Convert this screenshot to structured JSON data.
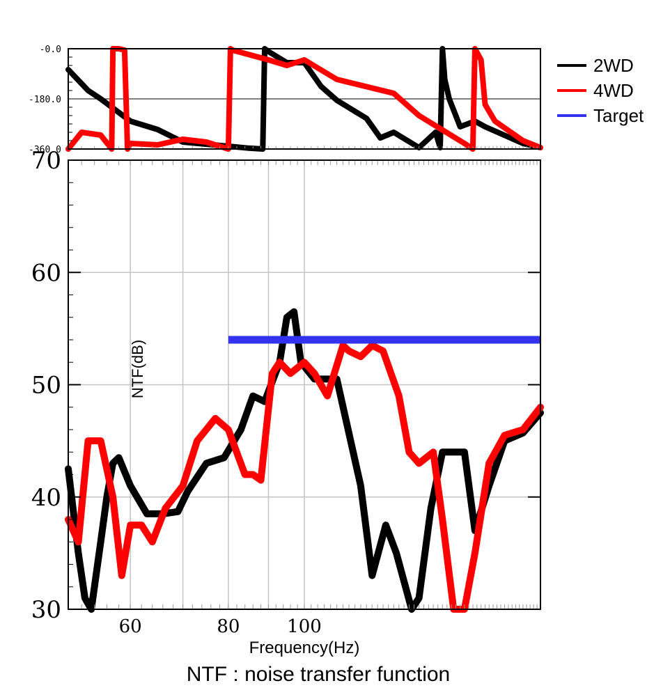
{
  "chart_data": [
    {
      "panel": "phase",
      "type": "line",
      "xscale": "log",
      "xlim": [
        50,
        200
      ],
      "ylim": [
        -360,
        0
      ],
      "yticks": [
        {
          "value": 0,
          "label": "-0.0"
        },
        {
          "value": -180,
          "label": "-180.0"
        },
        {
          "value": -360,
          "label": "-360.0"
        }
      ],
      "grid": "y at -180",
      "series": [
        {
          "name": "2WD",
          "color": "#000000",
          "x": [
            50,
            53,
            55,
            60,
            65,
            70,
            80,
            85,
            88.5,
            89,
            90,
            95,
            100,
            105,
            110,
            120,
            125,
            130,
            140,
            147,
            149,
            150,
            151,
            153,
            158,
            165,
            170,
            190,
            200
          ],
          "y": [
            -75,
            -150,
            -180,
            -260,
            -290,
            -335,
            -350,
            -357,
            -360,
            0,
            -10,
            -50,
            -50,
            -135,
            -185,
            -250,
            -320,
            -300,
            -355,
            -300,
            -355,
            0,
            -110,
            -180,
            -280,
            -260,
            -280,
            -340,
            -355
          ]
        },
        {
          "name": "4WD",
          "color": "#ff0000",
          "x": [
            50,
            52,
            55,
            56.8,
            57,
            58,
            59,
            59.5,
            60,
            65,
            70,
            75,
            80,
            80.5,
            81,
            90,
            95,
            100,
            110,
            130,
            140,
            160,
            164,
            165,
            168,
            170,
            175,
            190,
            200
          ],
          "y": [
            -360,
            -300,
            -310,
            -360,
            0,
            0,
            -5,
            -360,
            -340,
            -345,
            -325,
            -335,
            -360,
            0,
            -5,
            -40,
            -60,
            -40,
            -110,
            -160,
            -240,
            -340,
            -360,
            0,
            -40,
            -200,
            -260,
            -330,
            -355
          ]
        }
      ]
    },
    {
      "panel": "magnitude",
      "type": "line",
      "xscale": "log",
      "xlim": [
        50,
        200
      ],
      "ylim": [
        30,
        70
      ],
      "xticks": [
        60,
        80,
        100
      ],
      "yticks": [
        30,
        40,
        50,
        60,
        70
      ],
      "xlabel": "Frequency(Hz)",
      "ylabel": "NTF(dB)",
      "grid": true,
      "legend": "top-right",
      "series": [
        {
          "name": "2WD",
          "color": "#000000",
          "x": [
            50,
            51.5,
            52.5,
            53.5,
            55,
            56,
            57,
            58,
            60,
            63,
            66,
            69,
            71,
            75,
            79,
            83,
            86,
            89,
            93,
            95,
            97,
            99,
            103,
            110,
            118,
            122,
            127,
            131,
            137,
            140,
            145,
            150,
            160,
            165,
            172,
            180,
            190,
            200
          ],
          "y": [
            42.5,
            35,
            31,
            30,
            36,
            40,
            43,
            43.5,
            41,
            38.5,
            38.5,
            38.7,
            40.5,
            43,
            43.5,
            46,
            49,
            48.5,
            52,
            56,
            56.5,
            52,
            50.5,
            50.5,
            41,
            33,
            37.5,
            35,
            30,
            31,
            39,
            44,
            44,
            37,
            41,
            45,
            45.7,
            47.5
          ]
        },
        {
          "name": "4WD",
          "color": "#ff0000",
          "x": [
            50,
            51.5,
            53,
            55,
            57,
            58.5,
            60,
            62,
            64,
            66.5,
            70,
            73,
            77,
            80,
            84,
            86,
            88,
            91,
            93,
            96,
            100,
            103,
            107,
            112,
            114,
            118,
            122,
            126,
            132,
            136,
            140,
            146,
            150,
            155,
            160,
            165,
            172,
            180,
            190,
            200
          ],
          "y": [
            38,
            36,
            45,
            45,
            40,
            33,
            37.5,
            37.5,
            36,
            39,
            41,
            45,
            47,
            46,
            42,
            42,
            41.5,
            51,
            52,
            51,
            52,
            51,
            49,
            53.5,
            53,
            52.5,
            53.5,
            53,
            49,
            44,
            43,
            44,
            38,
            30,
            30,
            35,
            43,
            45.5,
            46,
            48
          ]
        },
        {
          "name": "Target",
          "color": "#3333ee",
          "x": [
            80,
            200
          ],
          "y": [
            54,
            54
          ]
        }
      ]
    }
  ],
  "caption": "NTF : noise transfer function"
}
